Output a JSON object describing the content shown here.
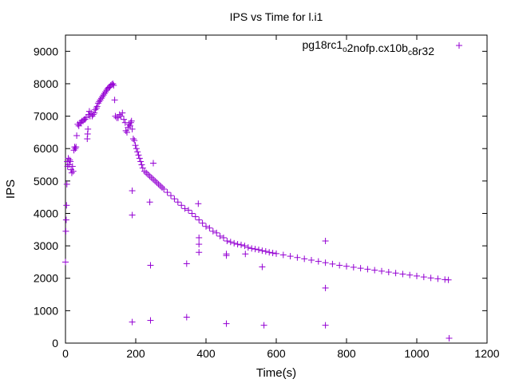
{
  "chart_data": {
    "type": "scatter",
    "title": "IPS vs Time for l.i1",
    "xlabel": "Time(s)",
    "ylabel": "IPS",
    "xlim": [
      0,
      1200
    ],
    "ylim": [
      0,
      9500
    ],
    "xticks": [
      0,
      200,
      400,
      600,
      800,
      1000,
      1200
    ],
    "yticks": [
      0,
      1000,
      2000,
      3000,
      4000,
      5000,
      6000,
      7000,
      8000,
      9000
    ],
    "grid": false,
    "legend_position": "top-right",
    "series": [
      {
        "name": "pg18rc1_o2nofp.cx10b_c8r32",
        "legend_parts": [
          {
            "text": "pg18rc1",
            "sub": false
          },
          {
            "text": "o",
            "sub": true
          },
          {
            "text": "2nofp.cx10b",
            "sub": false
          },
          {
            "text": "c",
            "sub": true
          },
          {
            "text": "8r32",
            "sub": false
          }
        ],
        "color": "#9400d3",
        "marker": "+",
        "points": [
          [
            0,
            2500
          ],
          [
            1,
            3450
          ],
          [
            2,
            3800
          ],
          [
            3,
            4250
          ],
          [
            4,
            4900
          ],
          [
            5,
            5600
          ],
          [
            6,
            5450
          ],
          [
            8,
            5700
          ],
          [
            10,
            5500
          ],
          [
            12,
            5650
          ],
          [
            14,
            5600
          ],
          [
            16,
            5350
          ],
          [
            18,
            5250
          ],
          [
            20,
            5450
          ],
          [
            22,
            5300
          ],
          [
            24,
            5950
          ],
          [
            26,
            6050
          ],
          [
            28,
            6000
          ],
          [
            30,
            6050
          ],
          [
            32,
            6400
          ],
          [
            35,
            6750
          ],
          [
            38,
            6700
          ],
          [
            41,
            6800
          ],
          [
            44,
            6800
          ],
          [
            47,
            6850
          ],
          [
            50,
            6850
          ],
          [
            53,
            6900
          ],
          [
            56,
            6900
          ],
          [
            59,
            6950
          ],
          [
            62,
            6300
          ],
          [
            63,
            6450
          ],
          [
            64,
            6600
          ],
          [
            66,
            7050
          ],
          [
            68,
            7150
          ],
          [
            70,
            7000
          ],
          [
            73,
            7100
          ],
          [
            76,
            7000
          ],
          [
            79,
            7050
          ],
          [
            82,
            7100
          ],
          [
            85,
            7200
          ],
          [
            88,
            7250
          ],
          [
            90,
            7300
          ],
          [
            93,
            7400
          ],
          [
            96,
            7450
          ],
          [
            99,
            7500
          ],
          [
            102,
            7550
          ],
          [
            105,
            7600
          ],
          [
            108,
            7650
          ],
          [
            111,
            7700
          ],
          [
            114,
            7750
          ],
          [
            117,
            7800
          ],
          [
            120,
            7850
          ],
          [
            123,
            7880
          ],
          [
            126,
            7900
          ],
          [
            129,
            7950
          ],
          [
            132,
            7980
          ],
          [
            135,
            8000
          ],
          [
            137,
            7950
          ],
          [
            140,
            7500
          ],
          [
            142,
            7000
          ],
          [
            146,
            6950
          ],
          [
            150,
            6950
          ],
          [
            154,
            7050
          ],
          [
            158,
            7000
          ],
          [
            162,
            7100
          ],
          [
            166,
            6900
          ],
          [
            170,
            6800
          ],
          [
            172,
            6550
          ],
          [
            175,
            6500
          ],
          [
            178,
            6650
          ],
          [
            181,
            6750
          ],
          [
            184,
            6700
          ],
          [
            186,
            6800
          ],
          [
            188,
            6850
          ],
          [
            190,
            6600
          ],
          [
            193,
            6300
          ],
          [
            196,
            6250
          ],
          [
            199,
            6100
          ],
          [
            202,
            6000
          ],
          [
            205,
            5900
          ],
          [
            208,
            5800
          ],
          [
            211,
            5700
          ],
          [
            214,
            5600
          ],
          [
            217,
            5500
          ],
          [
            220,
            5400
          ],
          [
            225,
            5300
          ],
          [
            230,
            5250
          ],
          [
            235,
            5200
          ],
          [
            240,
            5150
          ],
          [
            245,
            5100
          ],
          [
            250,
            5050
          ],
          [
            255,
            5000
          ],
          [
            260,
            4950
          ],
          [
            265,
            4900
          ],
          [
            270,
            4850
          ],
          [
            275,
            4800
          ],
          [
            280,
            4750
          ],
          [
            290,
            4650
          ],
          [
            300,
            4550
          ],
          [
            310,
            4450
          ],
          [
            320,
            4350
          ],
          [
            330,
            4250
          ],
          [
            340,
            4150
          ],
          [
            350,
            4100
          ],
          [
            360,
            4000
          ],
          [
            370,
            3900
          ],
          [
            380,
            3800
          ],
          [
            390,
            3700
          ],
          [
            400,
            3600
          ],
          [
            410,
            3550
          ],
          [
            420,
            3450
          ],
          [
            430,
            3400
          ],
          [
            440,
            3300
          ],
          [
            450,
            3250
          ],
          [
            460,
            3150
          ],
          [
            470,
            3120
          ],
          [
            480,
            3080
          ],
          [
            490,
            3050
          ],
          [
            500,
            3030
          ],
          [
            510,
            3000
          ],
          [
            520,
            2950
          ],
          [
            530,
            2920
          ],
          [
            540,
            2900
          ],
          [
            550,
            2880
          ],
          [
            560,
            2850
          ],
          [
            570,
            2830
          ],
          [
            580,
            2800
          ],
          [
            590,
            2780
          ],
          [
            600,
            2760
          ],
          [
            620,
            2720
          ],
          [
            640,
            2680
          ],
          [
            660,
            2640
          ],
          [
            680,
            2600
          ],
          [
            700,
            2560
          ],
          [
            720,
            2520
          ],
          [
            740,
            2480
          ],
          [
            760,
            2440
          ],
          [
            780,
            2400
          ],
          [
            800,
            2370
          ],
          [
            820,
            2340
          ],
          [
            840,
            2310
          ],
          [
            860,
            2280
          ],
          [
            880,
            2250
          ],
          [
            900,
            2220
          ],
          [
            920,
            2190
          ],
          [
            940,
            2160
          ],
          [
            960,
            2130
          ],
          [
            980,
            2100
          ],
          [
            1000,
            2070
          ],
          [
            1020,
            2040
          ],
          [
            1040,
            2010
          ],
          [
            1060,
            1985
          ],
          [
            1080,
            1960
          ],
          [
            1090,
            1950
          ],
          [
            190,
            4700
          ],
          [
            190,
            3950
          ],
          [
            190,
            650
          ],
          [
            240,
            4350
          ],
          [
            242,
            2400
          ],
          [
            242,
            700
          ],
          [
            250,
            5550
          ],
          [
            345,
            2450
          ],
          [
            345,
            800
          ],
          [
            378,
            4300
          ],
          [
            380,
            3250
          ],
          [
            380,
            3050
          ],
          [
            380,
            2800
          ],
          [
            458,
            2700
          ],
          [
            458,
            2750
          ],
          [
            458,
            600
          ],
          [
            512,
            2750
          ],
          [
            560,
            2350
          ],
          [
            565,
            550
          ],
          [
            740,
            3150
          ],
          [
            740,
            1700
          ],
          [
            740,
            550
          ],
          [
            1092,
            150
          ]
        ]
      }
    ]
  }
}
